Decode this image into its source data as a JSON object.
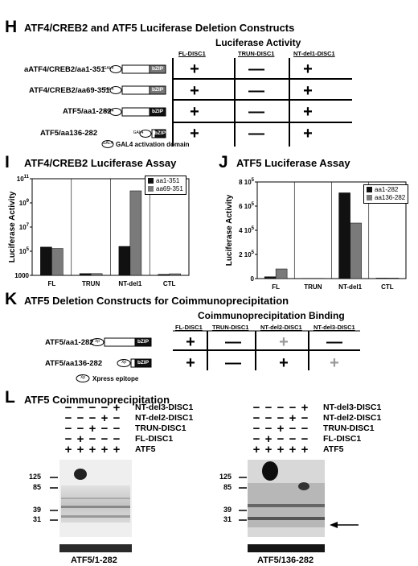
{
  "panelH": {
    "letter": "H",
    "title": "ATF4/CREB2 and ATF5 Luciferase Deletion Constructs",
    "activity_title": "Luciferase Activity",
    "columns": [
      "FL-DISC1",
      "TRUN-DISC1",
      "NT-del1-DISC1"
    ],
    "rows": [
      {
        "label": "aATF4/CREB2/aa1-351",
        "domain": "bZIP",
        "results": [
          "+",
          "—",
          "+"
        ]
      },
      {
        "label": "ATF4/CREB2/aa69-351",
        "domain": "bZIP",
        "results": [
          "+",
          "—",
          "+"
        ]
      },
      {
        "label": "ATF5/aa1-282",
        "domain": "bZIP",
        "results": [
          "+",
          "—",
          "+"
        ]
      },
      {
        "label": "ATF5/aa136-282",
        "domain": "bZIP",
        "results": [
          "+",
          "—",
          "+"
        ]
      }
    ],
    "tag": "GAL4",
    "footnote": "GAL4 activation domain"
  },
  "panelI": {
    "letter": "I",
    "title": "ATF4/CREB2 Luciferase Assay"
  },
  "panelJ": {
    "letter": "J",
    "title": "ATF5 Luciferase Assay"
  },
  "panelK": {
    "letter": "K",
    "title": "ATF5 Deletion Constructs for Coimmunoprecipitation",
    "binding_title": "Coimmunoprecipitation Binding",
    "columns": [
      "FL-DISC1",
      "TRUN-DISC1",
      "NT-del2-DISC1",
      "NT-del3-DISC1"
    ],
    "rows": [
      {
        "label": "ATF5/aa1-282",
        "domain": "bZIP",
        "results": [
          "+",
          "—",
          "+",
          "—"
        ],
        "gray": [
          false,
          false,
          true,
          false
        ]
      },
      {
        "label": "ATF5/aa136-282",
        "domain": "bZIP",
        "results": [
          "+",
          "—",
          "+",
          "+"
        ],
        "gray": [
          false,
          false,
          false,
          true
        ]
      }
    ],
    "tag": "Xp",
    "footnote": "Xpress epitope"
  },
  "panelL": {
    "letter": "L",
    "title": "ATF5 Coimmunoprecipitation",
    "row_labels": [
      "NT-del3-DISC1",
      "NT-del2-DISC1",
      "TRUN-DISC1",
      "FL-DISC1",
      "ATF5"
    ],
    "left_blot": {
      "caption": "ATF5/1-282",
      "grid": [
        [
          "−",
          "−",
          "−",
          "−",
          "+"
        ],
        [
          "−",
          "−",
          "−",
          "+",
          "−"
        ],
        [
          "−",
          "−",
          "+",
          "−",
          "−"
        ],
        [
          "−",
          "+",
          "−",
          "−",
          "−"
        ],
        [
          "+",
          "+",
          "+",
          "+",
          "+"
        ]
      ],
      "markers": [
        "125",
        "85",
        "39",
        "31"
      ]
    },
    "right_blot": {
      "caption": "ATF5/136-282",
      "grid": [
        [
          "−",
          "−",
          "−",
          "−",
          "+"
        ],
        [
          "−",
          "−",
          "−",
          "+",
          "−"
        ],
        [
          "−",
          "−",
          "+",
          "−",
          "−"
        ],
        [
          "−",
          "+",
          "−",
          "−",
          "−"
        ],
        [
          "+",
          "+",
          "+",
          "+",
          "+"
        ]
      ],
      "markers": [
        "125",
        "85",
        "39",
        "31"
      ]
    }
  },
  "chart_data": [
    {
      "type": "bar",
      "ylabel": "Luciferase Activity",
      "yscale": "log",
      "ylim": [
        1000,
        100000000000
      ],
      "yticks": [
        "1000",
        "10^5",
        "10^7",
        "10^9",
        "10^11"
      ],
      "categories": [
        "FL",
        "TRUN",
        "NT-del1",
        "CTL"
      ],
      "series": [
        {
          "name": "aa1-351",
          "color": "#111111",
          "values": [
            220000,
            1400,
            250000,
            1200
          ]
        },
        {
          "name": "aa69-351",
          "color": "#7a7a7a",
          "values": [
            170000,
            1400,
            10000000000,
            1350
          ]
        }
      ],
      "legend": "top-right"
    },
    {
      "type": "bar",
      "ylabel": "Luciferase Activity",
      "ylim": [
        0,
        800000
      ],
      "yticks": [
        "0",
        "2 10^5",
        "4 10^5",
        "6 10^5",
        "8 10^5"
      ],
      "categories": [
        "FL",
        "TRUN",
        "NT-del1",
        "CTL"
      ],
      "series": [
        {
          "name": "aa1-282",
          "color": "#111111",
          "values": [
            15000,
            2000,
            710000,
            4000
          ]
        },
        {
          "name": "aa136-282",
          "color": "#7a7a7a",
          "values": [
            80000,
            2000,
            460000,
            4000
          ]
        }
      ],
      "legend": "top-right"
    }
  ]
}
